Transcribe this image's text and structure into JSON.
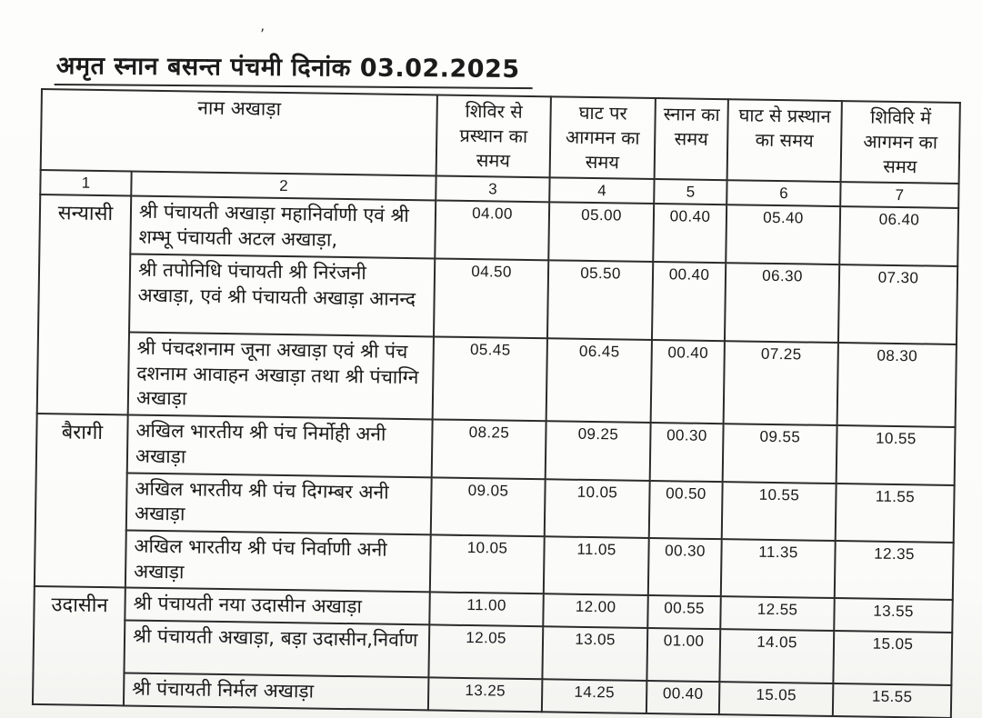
{
  "title": "अमृत स्नान बसन्त पंचमी दिनांक 03.02.2025",
  "table": {
    "header": {
      "name_col": "नाम अखाड़ा",
      "time_cols": [
        "शिविर से प्रस्थान का समय",
        "घाट पर आगमन का समय",
        "स्नान का समय",
        "घाट से प्रस्थान का समय",
        "शिविरि में आगमन का समय"
      ],
      "col_numbers": [
        "1",
        "2",
        "3",
        "4",
        "5",
        "6",
        "7"
      ]
    },
    "groups": [
      {
        "name": "सन्यासी",
        "rows": [
          {
            "akhara": "श्री पंचायती अखाड़ा महानिर्वाणी एवं श्री शम्भू पंचायती अटल अखाड़ा,",
            "times": [
              "04.00",
              "05.00",
              "00.40",
              "05.40",
              "06.40"
            ]
          },
          {
            "akhara": "श्री तपोनिधि पंचायती श्री निरंजनी अखाड़ा, एवं श्री पंचायती अखाड़ा आनन्द",
            "times": [
              "04.50",
              "05.50",
              "00.40",
              "06.30",
              "07.30"
            ]
          },
          {
            "akhara": "श्री पंचदशनाम जूना अखाड़ा एवं श्री पंच दशनाम आवाहन अखाड़ा तथा श्री पंचाग्नि अखाड़ा",
            "times": [
              "05.45",
              "06.45",
              "00.40",
              "07.25",
              "08.30"
            ]
          }
        ]
      },
      {
        "name": "बैरागी",
        "rows": [
          {
            "akhara": "अखिल भारतीय श्री पंच निर्मोही अनी अखाड़ा",
            "times": [
              "08.25",
              "09.25",
              "00.30",
              "09.55",
              "10.55"
            ]
          },
          {
            "akhara": "अखिल भारतीय श्री पंच दिगम्बर अनी अखाड़ा",
            "times": [
              "09.05",
              "10.05",
              "00.50",
              "10.55",
              "11.55"
            ]
          },
          {
            "akhara": "अखिल भारतीय श्री पंच निर्वाणी अनी अखाड़ा",
            "times": [
              "10.05",
              "11.05",
              "00.30",
              "11.35",
              "12.35"
            ]
          }
        ]
      },
      {
        "name": "उदासीन",
        "rows": [
          {
            "akhara": "श्री पंचायती नया उदासीन अखाड़ा",
            "times": [
              "11.00",
              "12.00",
              "00.55",
              "12.55",
              "13.55"
            ]
          },
          {
            "akhara": "श्री पंचायती अखाड़ा, बड़ा उदासीन,निर्वाण",
            "times": [
              "12.05",
              "13.05",
              "01.00",
              "14.05",
              "15.05"
            ]
          },
          {
            "akhara": "श्री पंचायती निर्मल अखाड़ा",
            "times": [
              "13.25",
              "14.25",
              "00.40",
              "15.05",
              "15.55"
            ]
          }
        ]
      }
    ]
  },
  "decor": {
    "speck": "’"
  }
}
